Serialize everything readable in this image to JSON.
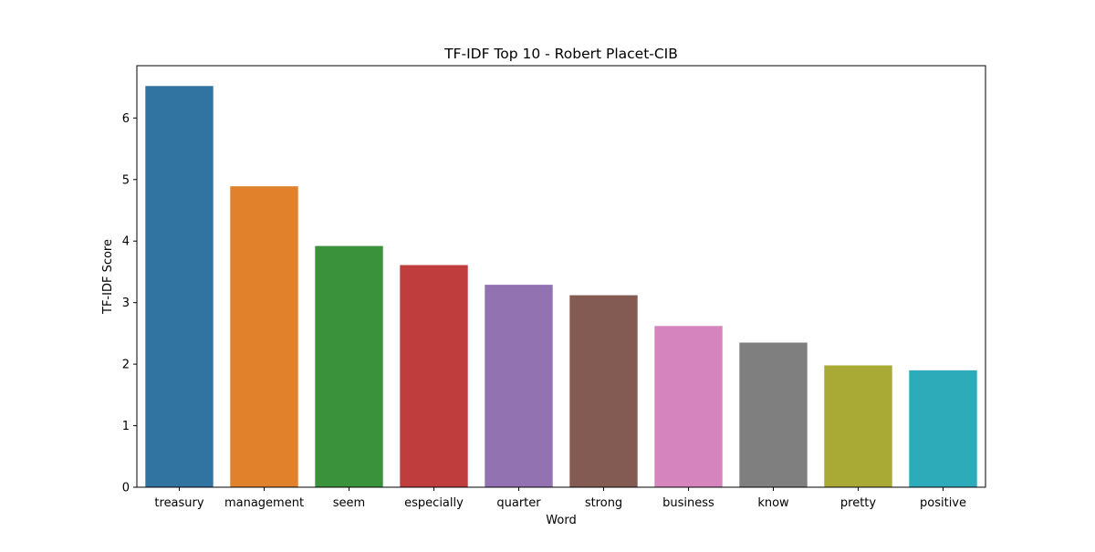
{
  "chart_data": {
    "type": "bar",
    "title": "TF-IDF Top 10 - Robert Placet-CIB",
    "xlabel": "Word",
    "ylabel": "TF-IDF Score",
    "categories": [
      "treasury",
      "management",
      "seem",
      "especially",
      "quarter",
      "strong",
      "business",
      "know",
      "pretty",
      "positive"
    ],
    "values": [
      6.52,
      4.89,
      3.92,
      3.61,
      3.29,
      3.12,
      2.62,
      2.35,
      1.98,
      1.9
    ],
    "colors": [
      "#3274a1",
      "#e1812c",
      "#3a923a",
      "#c03d3e",
      "#9372b2",
      "#845b53",
      "#d684bd",
      "#7f7f7f",
      "#a9aa35",
      "#2eabb8"
    ],
    "ylim": [
      0,
      6.85
    ],
    "yticks": [
      0,
      1,
      2,
      3,
      4,
      5,
      6
    ],
    "grid": false,
    "legend": "none"
  }
}
